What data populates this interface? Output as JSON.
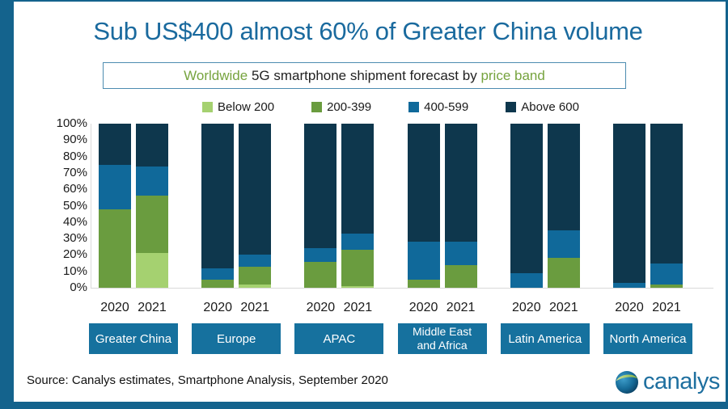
{
  "page": {
    "title": "Sub US$400 almost 60% of Greater China volume",
    "subtitle_parts": {
      "lead": "Worldwide",
      "middle": " 5G smartphone shipment forecast by ",
      "tail": "price band"
    },
    "source": "Source: Canalys estimates, Smartphone Analysis, September 2020",
    "brand": "canalys"
  },
  "colors": {
    "accent_teal": "#14638d",
    "title_blue": "#1a6a9e",
    "green_text": "#76a33e",
    "region_box_teal": "#16719e",
    "axis_gray": "#d9d9d9"
  },
  "chart_data": {
    "type": "bar",
    "stacked": true,
    "value_unit": "percent of shipments",
    "title": "Worldwide 5G smartphone shipment forecast by price band",
    "ylim": [
      0,
      100
    ],
    "grid": false,
    "legend_position": "top",
    "y_ticks": [
      "100%",
      "90%",
      "80%",
      "70%",
      "60%",
      "50%",
      "40%",
      "30%",
      "20%",
      "10%",
      "0%"
    ],
    "legend": [
      "Below 200",
      "200-399",
      "400-599",
      "Above 600"
    ],
    "series_colors": [
      "#a5d170",
      "#6a9c3f",
      "#10699a",
      "#0e374d"
    ],
    "x_years": [
      "2020",
      "2021"
    ],
    "groups": [
      {
        "region": "Greater China",
        "region_lines": [
          "Greater China"
        ],
        "bars": [
          {
            "year": "2020",
            "values": [
              0,
              48,
              27,
              25
            ]
          },
          {
            "year": "2021",
            "values": [
              21,
              35,
              18,
              26
            ]
          }
        ]
      },
      {
        "region": "Europe",
        "region_lines": [
          "Europe"
        ],
        "bars": [
          {
            "year": "2020",
            "values": [
              0,
              5,
              7,
              88
            ]
          },
          {
            "year": "2021",
            "values": [
              2,
              11,
              7,
              80
            ]
          }
        ]
      },
      {
        "region": "APAC",
        "region_lines": [
          "APAC"
        ],
        "bars": [
          {
            "year": "2020",
            "values": [
              0,
              16,
              8,
              76
            ]
          },
          {
            "year": "2021",
            "values": [
              1,
              22,
              10,
              67
            ]
          }
        ]
      },
      {
        "region": "Middle East and Africa",
        "region_lines": [
          "Middle East",
          "and Africa"
        ],
        "bars": [
          {
            "year": "2020",
            "values": [
              0,
              5,
              23,
              72
            ]
          },
          {
            "year": "2021",
            "values": [
              0,
              14,
              14,
              72
            ]
          }
        ]
      },
      {
        "region": "Latin America",
        "region_lines": [
          "Latin America"
        ],
        "bars": [
          {
            "year": "2020",
            "values": [
              0,
              0,
              9,
              91
            ]
          },
          {
            "year": "2021",
            "values": [
              0,
              18,
              17,
              65
            ]
          }
        ]
      },
      {
        "region": "North America",
        "region_lines": [
          "North America"
        ],
        "bars": [
          {
            "year": "2020",
            "values": [
              0,
              0,
              3,
              97
            ]
          },
          {
            "year": "2021",
            "values": [
              0,
              2,
              13,
              85
            ]
          }
        ]
      }
    ]
  }
}
